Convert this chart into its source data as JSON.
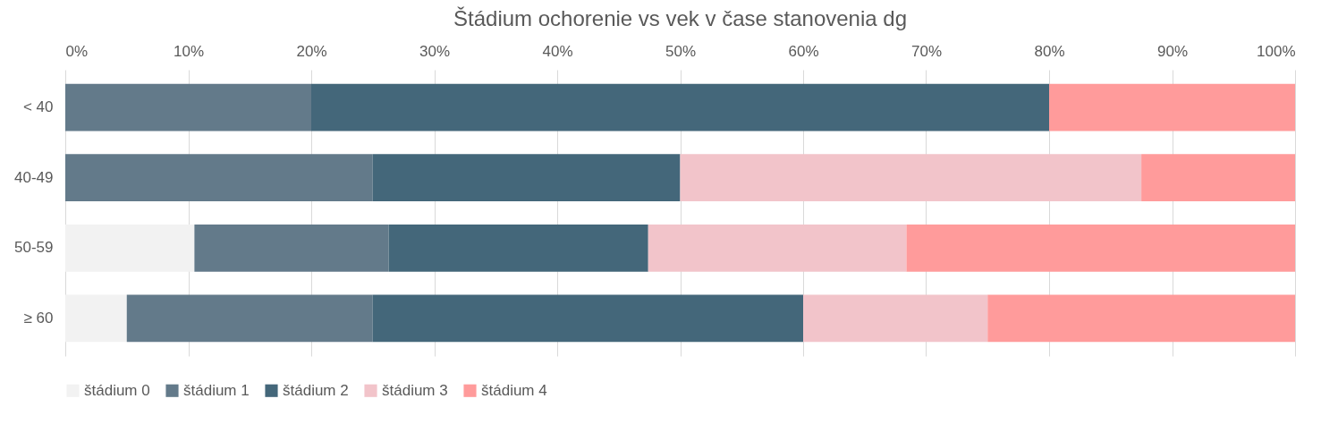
{
  "chart_data": {
    "type": "bar",
    "orientation": "horizontal",
    "stacked": true,
    "title": "Štádium ochorenie vs vek v čase stanovenia dg",
    "categories": [
      "< 40",
      "40-49",
      "50-59",
      "≥ 60"
    ],
    "series": [
      {
        "name": "štádium 0",
        "color": "#f2f2f2",
        "values": [
          0,
          0,
          10.5,
          5
        ]
      },
      {
        "name": "štádium 1",
        "color": "#637a8a",
        "values": [
          20,
          25,
          15.8,
          20
        ]
      },
      {
        "name": "štádium 2",
        "color": "#44677a",
        "values": [
          60,
          25,
          21.1,
          35
        ]
      },
      {
        "name": "štádium 3",
        "color": "#f2c4ca",
        "values": [
          0,
          37.5,
          21,
          15
        ]
      },
      {
        "name": "štádium 4",
        "color": "#ff9b9b",
        "values": [
          20,
          12.5,
          31.6,
          25
        ]
      }
    ],
    "xlim": [
      0,
      100
    ],
    "xticks": [
      {
        "value": 0,
        "label": "0%"
      },
      {
        "value": 10,
        "label": "10%"
      },
      {
        "value": 20,
        "label": "20%"
      },
      {
        "value": 30,
        "label": "30%"
      },
      {
        "value": 40,
        "label": "40%"
      },
      {
        "value": 50,
        "label": "50%"
      },
      {
        "value": 60,
        "label": "60%"
      },
      {
        "value": 70,
        "label": "70%"
      },
      {
        "value": 80,
        "label": "80%"
      },
      {
        "value": 90,
        "label": "90%"
      },
      {
        "value": 100,
        "label": "100%"
      }
    ],
    "grid": "x",
    "legend": "bottom"
  }
}
